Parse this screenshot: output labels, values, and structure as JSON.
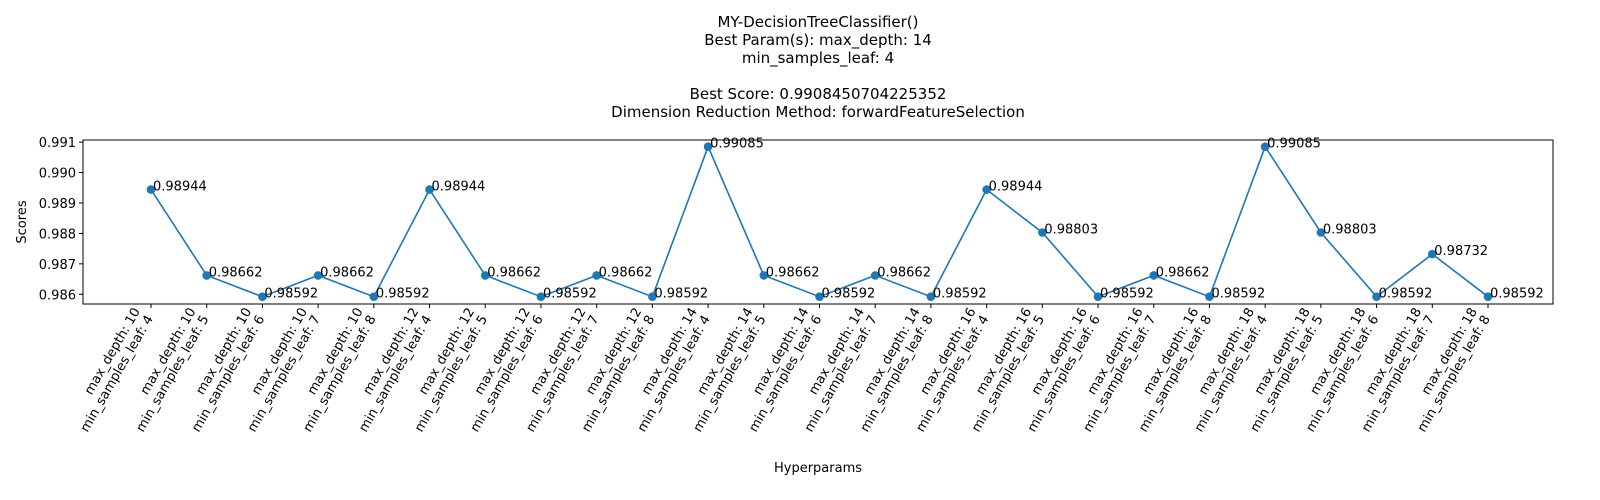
{
  "chart_data": {
    "type": "line",
    "title_lines": [
      "MY-DecisionTreeClassifier()",
      "Best Param(s): max_depth: 14",
      "min_samples_leaf: 4",
      "",
      "Best Score: 0.9908450704225352",
      "Dimension Reduction Method: forwardFeatureSelection"
    ],
    "xlabel": "Hyperparams",
    "ylabel": "Scores",
    "ylim": [
      0.98568,
      0.99107
    ],
    "yticks": [
      0.986,
      0.987,
      0.988,
      0.989,
      0.99,
      0.991
    ],
    "ytick_labels": [
      "0.986",
      "0.987",
      "0.988",
      "0.989",
      "0.990",
      "0.991"
    ],
    "series_color": "#1f77b4",
    "categories": [
      [
        "max_depth: 10",
        "min_samples_leaf: 4"
      ],
      [
        "max_depth: 10",
        "min_samples_leaf: 5"
      ],
      [
        "max_depth: 10",
        "min_samples_leaf: 6"
      ],
      [
        "max_depth: 10",
        "min_samples_leaf: 7"
      ],
      [
        "max_depth: 10",
        "min_samples_leaf: 8"
      ],
      [
        "max_depth: 12",
        "min_samples_leaf: 4"
      ],
      [
        "max_depth: 12",
        "min_samples_leaf: 5"
      ],
      [
        "max_depth: 12",
        "min_samples_leaf: 6"
      ],
      [
        "max_depth: 12",
        "min_samples_leaf: 7"
      ],
      [
        "max_depth: 12",
        "min_samples_leaf: 8"
      ],
      [
        "max_depth: 14",
        "min_samples_leaf: 4"
      ],
      [
        "max_depth: 14",
        "min_samples_leaf: 5"
      ],
      [
        "max_depth: 14",
        "min_samples_leaf: 6"
      ],
      [
        "max_depth: 14",
        "min_samples_leaf: 7"
      ],
      [
        "max_depth: 14",
        "min_samples_leaf: 8"
      ],
      [
        "max_depth: 16",
        "min_samples_leaf: 4"
      ],
      [
        "max_depth: 16",
        "min_samples_leaf: 5"
      ],
      [
        "max_depth: 16",
        "min_samples_leaf: 6"
      ],
      [
        "max_depth: 16",
        "min_samples_leaf: 7"
      ],
      [
        "max_depth: 16",
        "min_samples_leaf: 8"
      ],
      [
        "max_depth: 18",
        "min_samples_leaf: 4"
      ],
      [
        "max_depth: 18",
        "min_samples_leaf: 5"
      ],
      [
        "max_depth: 18",
        "min_samples_leaf: 6"
      ],
      [
        "max_depth: 18",
        "min_samples_leaf: 7"
      ],
      [
        "max_depth: 18",
        "min_samples_leaf: 8"
      ]
    ],
    "values": [
      0.98944,
      0.98662,
      0.98592,
      0.98662,
      0.98592,
      0.98944,
      0.98662,
      0.98592,
      0.98662,
      0.98592,
      0.99085,
      0.98662,
      0.98592,
      0.98662,
      0.98592,
      0.98944,
      0.98803,
      0.98592,
      0.98662,
      0.98592,
      0.99085,
      0.98803,
      0.98592,
      0.98732,
      0.98592
    ],
    "value_labels": [
      "0.98944",
      "0.98662",
      "0.98592",
      "0.98662",
      "0.98592",
      "0.98944",
      "0.98662",
      "0.98592",
      "0.98662",
      "0.98592",
      "0.99085",
      "0.98662",
      "0.98592",
      "0.98662",
      "0.98592",
      "0.98944",
      "0.98803",
      "0.98592",
      "0.98662",
      "0.98592",
      "0.99085",
      "0.98803",
      "0.98592",
      "0.98732",
      "0.98592"
    ],
    "grid": false,
    "legend": "none"
  }
}
